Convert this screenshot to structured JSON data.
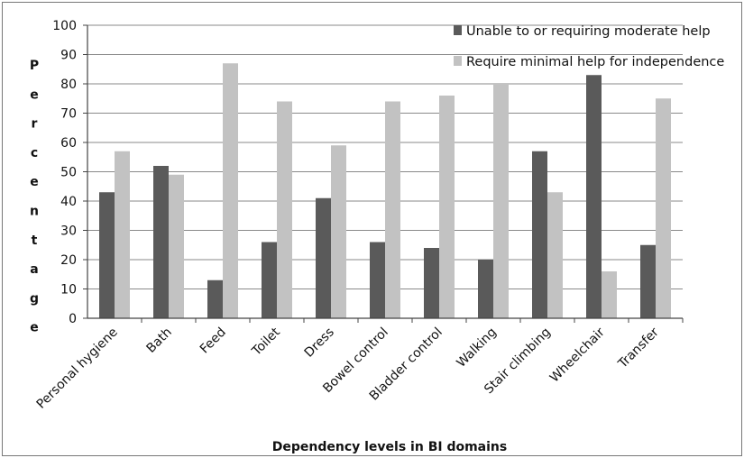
{
  "chart_data": {
    "type": "bar",
    "categories": [
      "Personal hygiene",
      "Bath",
      "Feed",
      "Toilet",
      "Dress",
      "Bowel control",
      "Bladder control",
      "Walking",
      "Stair climbing",
      "Wheelchair",
      "Transfer"
    ],
    "series": [
      {
        "name": "Unable to or requiring moderate help",
        "values": [
          43,
          52,
          13,
          26,
          41,
          26,
          24,
          20,
          57,
          83,
          25
        ],
        "color": "#5a5a5a"
      },
      {
        "name": "Require minimal help for independence",
        "values": [
          57,
          49,
          87,
          74,
          59,
          74,
          76,
          80,
          43,
          16,
          75
        ],
        "color": "#c2c2c2"
      }
    ],
    "xlabel": "Dependency levels in BI domains",
    "ylabel": "Percentage",
    "ylabel_letters": [
      "P",
      "e",
      "r",
      "c",
      "e",
      "n",
      "t",
      "a",
      "g",
      "e"
    ],
    "ylim": [
      0,
      100
    ],
    "yticks": [
      "0",
      "10",
      "20",
      "30",
      "40",
      "50",
      "60",
      "70",
      "80",
      "90",
      "100"
    ],
    "grid": true,
    "legend_position": "top-right"
  }
}
